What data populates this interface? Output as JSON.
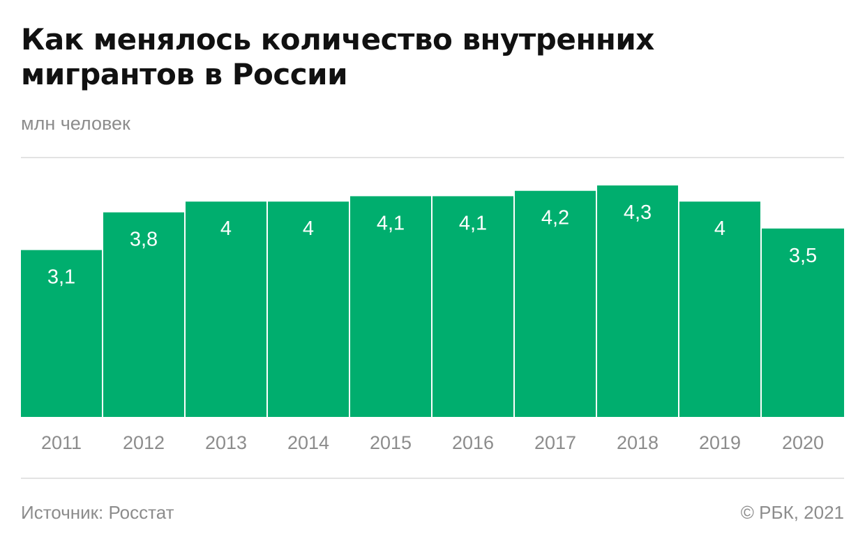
{
  "header": {
    "title": "Как менялось количество внутренних мигрантов в России",
    "subtitle": "млн человек"
  },
  "footer": {
    "source": "Источник: Росстат",
    "copyright": "© РБК, 2021"
  },
  "colors": {
    "bar": "#00ae6e",
    "bar_label": "#ffffff",
    "tick_label": "#8c8c8c"
  },
  "chart_data": {
    "type": "bar",
    "title": "Как менялось количество внутренних мигрантов в России",
    "ylabel": "млн человек",
    "categories": [
      "2011",
      "2012",
      "2013",
      "2014",
      "2015",
      "2016",
      "2017",
      "2018",
      "2019",
      "2020"
    ],
    "values": [
      3.1,
      3.8,
      4.0,
      4.0,
      4.1,
      4.1,
      4.2,
      4.3,
      4.0,
      3.5
    ],
    "value_labels": [
      "3,1",
      "3,8",
      "4",
      "4",
      "4,1",
      "4,1",
      "4,2",
      "4,3",
      "4",
      "3,5"
    ],
    "ylim": [
      0,
      4.3
    ],
    "grid": false,
    "legend": "none"
  }
}
